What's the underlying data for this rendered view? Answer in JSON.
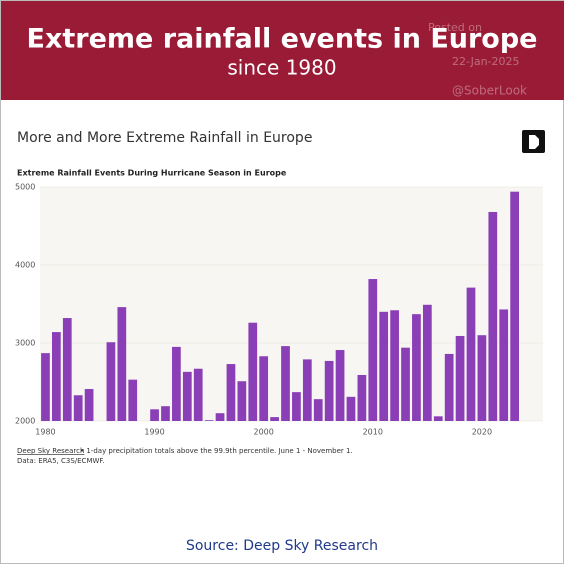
{
  "header": {
    "title": "Extreme rainfall events in Europe",
    "subtitle": "since 1980"
  },
  "watermark": [
    "Posted on",
    "22-Jan-2025",
    "@SoberLook"
  ],
  "chart_data": {
    "type": "bar",
    "heading": "More and More Extreme Rainfall in Europe",
    "title": "Extreme Rainfall Events During Hurricane Season in Europe",
    "x": [
      1980,
      1981,
      1982,
      1983,
      1984,
      1985,
      1986,
      1987,
      1988,
      1989,
      1990,
      1991,
      1992,
      1993,
      1994,
      1995,
      1996,
      1997,
      1998,
      1999,
      2000,
      2001,
      2002,
      2003,
      2004,
      2005,
      2006,
      2007,
      2008,
      2009,
      2010,
      2011,
      2012,
      2013,
      2014,
      2015,
      2016,
      2017,
      2018,
      2019,
      2020,
      2021,
      2022,
      2023
    ],
    "values": [
      2870,
      3140,
      3320,
      2330,
      2410,
      null,
      3010,
      3460,
      2530,
      null,
      2150,
      2190,
      2950,
      2630,
      2670,
      2010,
      2100,
      2730,
      2510,
      3260,
      2830,
      2050,
      2960,
      2370,
      2790,
      2280,
      2770,
      2910,
      2310,
      2590,
      3820,
      3400,
      3420,
      2940,
      3370,
      3490,
      2060,
      2860,
      3090,
      3710,
      3100,
      4680,
      3430,
      4940
    ],
    "color": "#8b3fb7",
    "xlim": [
      1979.5,
      2025.6
    ],
    "xticks": [
      1980,
      1990,
      2000,
      2010,
      2020
    ],
    "ylim": [
      2000,
      5000
    ],
    "yticks": [
      2000,
      3000,
      4000,
      5000
    ],
    "note_link": "Deep Sky Research",
    "note": "• 1-day precipitation totals above the 99.9th percentile. June 1 - November 1.",
    "data_note": "Data: ERA5, C3S/ECMWF."
  },
  "source": "Source: Deep Sky Research"
}
